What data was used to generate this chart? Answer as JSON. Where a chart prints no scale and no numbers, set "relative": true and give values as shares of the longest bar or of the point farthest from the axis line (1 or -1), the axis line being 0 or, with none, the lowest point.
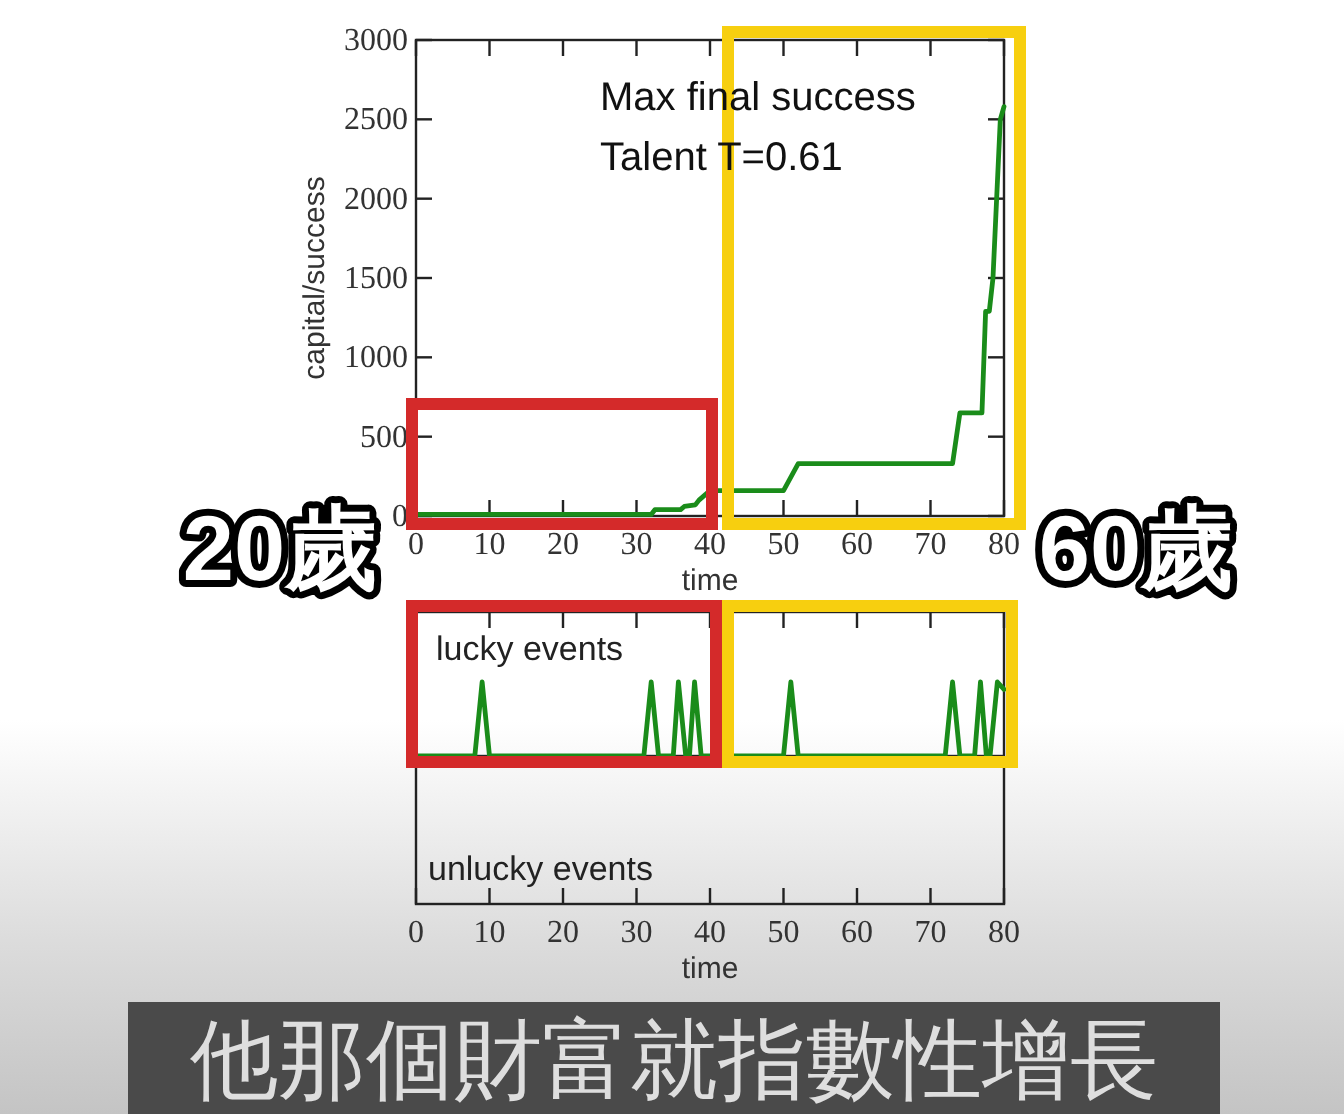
{
  "chart_data": [
    {
      "type": "line",
      "xlabel": "time",
      "ylabel": "capital/success",
      "xlim": [
        0,
        80
      ],
      "ylim": [
        0,
        3000
      ],
      "xticks": [
        0,
        10,
        20,
        30,
        40,
        50,
        60,
        70,
        80
      ],
      "yticks": [
        0,
        500,
        1000,
        1500,
        2000,
        2500,
        3000
      ],
      "color": "#1a8c1a",
      "x": [
        0,
        32,
        32.5,
        36,
        36.5,
        38,
        38.5,
        40,
        50,
        52,
        73,
        74,
        77,
        77.5,
        78,
        78.5,
        79,
        79.5,
        80
      ],
      "values": [
        10,
        10,
        40,
        40,
        60,
        70,
        100,
        160,
        160,
        330,
        330,
        650,
        650,
        1290,
        1290,
        1500,
        2000,
        2500,
        2580
      ],
      "annotations": [
        "Max final success",
        "Talent T=0.61",
        "20歲",
        "60歲",
        "他那個財富就指數性增長"
      ]
    },
    {
      "type": "line",
      "relative": true,
      "xlabel": "time",
      "xlim": [
        0,
        80
      ],
      "xticks": [
        0,
        10,
        20,
        30,
        40,
        50,
        60,
        70,
        80
      ],
      "color": "#1a8c1a",
      "x": [
        0,
        8,
        9,
        10,
        31,
        32,
        33,
        35,
        35.7,
        36.7,
        37.2,
        37.9,
        38.8,
        50,
        51,
        52,
        72,
        73,
        74,
        76,
        76.8,
        77.6,
        78.1,
        79.1,
        80
      ],
      "values": [
        0,
        0,
        1,
        0,
        0,
        1,
        0,
        0,
        1,
        0,
        0,
        1,
        0,
        0,
        1,
        0,
        0,
        1,
        0,
        0,
        1,
        0,
        0,
        1,
        0.9
      ],
      "annotations": [
        "lucky events",
        "unlucky events"
      ]
    }
  ]
}
